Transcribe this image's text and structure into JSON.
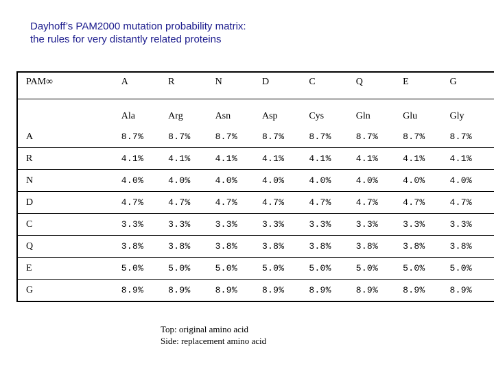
{
  "title": {
    "line1": "Dayhoff’s PAM2000 mutation probability matrix:",
    "line2": "the rules for very distantly related proteins"
  },
  "matrix": {
    "corner": "PAM∞",
    "columns": [
      {
        "code": "A",
        "name": "Ala"
      },
      {
        "code": "R",
        "name": "Arg"
      },
      {
        "code": "N",
        "name": "Asn"
      },
      {
        "code": "D",
        "name": "Asp"
      },
      {
        "code": "C",
        "name": "Cys"
      },
      {
        "code": "Q",
        "name": "Gln"
      },
      {
        "code": "E",
        "name": "Glu"
      },
      {
        "code": "G",
        "name": "Gly"
      }
    ],
    "rows": [
      {
        "label": "A",
        "values": [
          "8.7%",
          "8.7%",
          "8.7%",
          "8.7%",
          "8.7%",
          "8.7%",
          "8.7%",
          "8.7%"
        ]
      },
      {
        "label": "R",
        "values": [
          "4.1%",
          "4.1%",
          "4.1%",
          "4.1%",
          "4.1%",
          "4.1%",
          "4.1%",
          "4.1%"
        ]
      },
      {
        "label": "N",
        "values": [
          "4.0%",
          "4.0%",
          "4.0%",
          "4.0%",
          "4.0%",
          "4.0%",
          "4.0%",
          "4.0%"
        ]
      },
      {
        "label": "D",
        "values": [
          "4.7%",
          "4.7%",
          "4.7%",
          "4.7%",
          "4.7%",
          "4.7%",
          "4.7%",
          "4.7%"
        ]
      },
      {
        "label": "C",
        "values": [
          "3.3%",
          "3.3%",
          "3.3%",
          "3.3%",
          "3.3%",
          "3.3%",
          "3.3%",
          "3.3%"
        ]
      },
      {
        "label": "Q",
        "values": [
          "3.8%",
          "3.8%",
          "3.8%",
          "3.8%",
          "3.8%",
          "3.8%",
          "3.8%",
          "3.8%"
        ]
      },
      {
        "label": "E",
        "values": [
          "5.0%",
          "5.0%",
          "5.0%",
          "5.0%",
          "5.0%",
          "5.0%",
          "5.0%",
          "5.0%"
        ]
      },
      {
        "label": "G",
        "values": [
          "8.9%",
          "8.9%",
          "8.9%",
          "8.9%",
          "8.9%",
          "8.9%",
          "8.9%",
          "8.9%"
        ]
      }
    ]
  },
  "caption": {
    "line1": "Top: original amino acid",
    "line2": "Side: replacement amino acid"
  },
  "colors": {
    "title": "#1a1a8c",
    "text": "#000000",
    "background": "#ffffff"
  }
}
